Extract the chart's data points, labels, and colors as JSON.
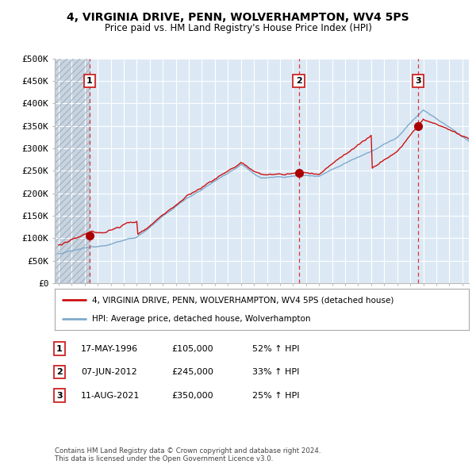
{
  "title": "4, VIRGINIA DRIVE, PENN, WOLVERHAMPTON, WV4 5PS",
  "subtitle": "Price paid vs. HM Land Registry's House Price Index (HPI)",
  "xlim_start": 1993.7,
  "xlim_end": 2025.5,
  "ylim": [
    0,
    500000
  ],
  "yticks": [
    0,
    50000,
    100000,
    150000,
    200000,
    250000,
    300000,
    350000,
    400000,
    450000,
    500000
  ],
  "ytick_labels": [
    "£0",
    "£50K",
    "£100K",
    "£150K",
    "£200K",
    "£250K",
    "£300K",
    "£350K",
    "£400K",
    "£450K",
    "£500K"
  ],
  "sale_dates": [
    1996.37,
    2012.44,
    2021.61
  ],
  "sale_prices": [
    105000,
    245000,
    350000
  ],
  "sale_labels": [
    "1",
    "2",
    "3"
  ],
  "vline_color": "#dd3333",
  "sale_point_color": "#aa0000",
  "hpi_line_color": "#7eaacc",
  "price_line_color": "#cc1111",
  "legend_entries": [
    "4, VIRGINIA DRIVE, PENN, WOLVERHAMPTON, WV4 5PS (detached house)",
    "HPI: Average price, detached house, Wolverhampton"
  ],
  "table_rows": [
    [
      "1",
      "17-MAY-1996",
      "£105,000",
      "52% ↑ HPI"
    ],
    [
      "2",
      "07-JUN-2012",
      "£245,000",
      "33% ↑ HPI"
    ],
    [
      "3",
      "11-AUG-2021",
      "£350,000",
      "25% ↑ HPI"
    ]
  ],
  "footnote": "Contains HM Land Registry data © Crown copyright and database right 2024.\nThis data is licensed under the Open Government Licence v3.0.",
  "background_color": "#ffffff",
  "plot_bg_color": "#dce9f5",
  "hatch_bg_color": "#c8d4e0"
}
